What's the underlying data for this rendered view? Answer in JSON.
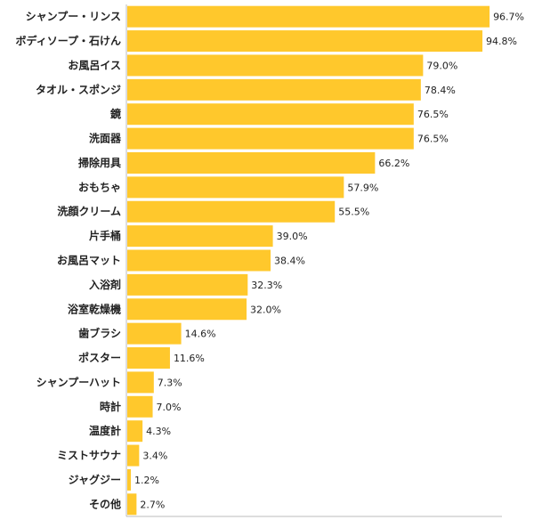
{
  "chart_data": {
    "type": "bar",
    "orientation": "horizontal",
    "title": "",
    "xlabel": "",
    "ylabel": "",
    "xlim": [
      0,
      100
    ],
    "grid": false,
    "bar_color": "#FFC82C",
    "axis_color": "#bbbbbb",
    "categories": [
      "シャンプー・リンス",
      "ボディソープ・石けん",
      "お風呂イス",
      "タオル・スポンジ",
      "鏡",
      "洗面器",
      "掃除用具",
      "おもちゃ",
      "洗顔クリーム",
      "片手桶",
      "お風呂マット",
      "入浴剤",
      "浴室乾燥機",
      "歯ブラシ",
      "ポスター",
      "シャンプーハット",
      "時計",
      "温度計",
      "ミストサウナ",
      "ジャグジー",
      "その他"
    ],
    "values": [
      96.7,
      94.8,
      79.0,
      78.4,
      76.5,
      76.5,
      66.2,
      57.9,
      55.5,
      39.0,
      38.4,
      32.3,
      32.0,
      14.6,
      11.6,
      7.3,
      7.0,
      4.3,
      3.4,
      1.2,
      2.7
    ],
    "value_labels": [
      "96.7%",
      "94.8%",
      "79.0%",
      "78.4%",
      "76.5%",
      "76.5%",
      "66.2%",
      "57.9%",
      "55.5%",
      "39.0%",
      "38.4%",
      "32.3%",
      "32.0%",
      "14.6%",
      "11.6%",
      "7.3%",
      "7.0%",
      "4.3%",
      "3.4%",
      "1.2%",
      "2.7%"
    ]
  }
}
